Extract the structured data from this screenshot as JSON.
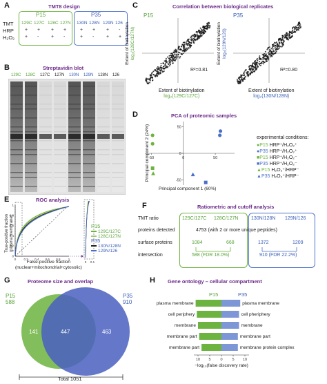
{
  "colors": {
    "green": "#6db33f",
    "blue": "#4a6fc9",
    "purple": "#6b2a8a",
    "gray": "#888888"
  },
  "panelA": {
    "label": "A",
    "title": "TMT8 design",
    "group_p15": "P15",
    "group_p35": "P35",
    "row_labels": [
      "TMT",
      "HRP",
      "H₂O₂"
    ],
    "channels": [
      "129C",
      "127C",
      "128C",
      "127N",
      "130N",
      "128N",
      "129N",
      "126"
    ],
    "hrp": [
      "+",
      "+",
      "+",
      "+",
      "+",
      "+",
      "+",
      "-"
    ],
    "h2o2": [
      "+",
      "-",
      "+",
      "-",
      "+",
      "-",
      "+",
      "+"
    ]
  },
  "panelB": {
    "label": "B",
    "title": "Streptavidin blot",
    "lanes": [
      "129C",
      "128C",
      "127C",
      "127N",
      "130N",
      "129N",
      "128N",
      "126"
    ]
  },
  "panelC": {
    "label": "C",
    "title": "Correlation between biological replicates",
    "left": {
      "group": "P15",
      "r2": "R²=0.81",
      "ylabel1": "Extent of biotinylation",
      "ylabel2": "log₂(128C/127N)",
      "xlabel1": "Extent of biotinylation",
      "xlabel2": "log₂(129C/127C)"
    },
    "right": {
      "group": "P35",
      "r2": "R²=0.80",
      "ylabel1": "Extent of biotinylation",
      "ylabel2": "log₂(129N/126)",
      "xlabel1": "Extent of biotinylation",
      "xlabel2": "log₂(130N/128N)"
    }
  },
  "panelD": {
    "label": "D",
    "title": "PCA of proteomic samples",
    "ylabel": "Principal component 2 (24%)",
    "xlabel": "Principal component 1 (60%)",
    "xticks": [
      "-50",
      "0",
      "50"
    ],
    "yticks": [
      "50",
      "0",
      "-50"
    ],
    "legend_title": "experimental conditions:",
    "legend": [
      {
        "group": "P15",
        "text": "HRP⁺/H₂O₂⁺",
        "color": "#6db33f",
        "shape": "circle"
      },
      {
        "group": "P35",
        "text": "HRP⁺/H₂O₂⁺",
        "color": "#4a6fc9",
        "shape": "circle"
      },
      {
        "group": "P15",
        "text": "HRP⁺/H₂O₂⁻",
        "color": "#6db33f",
        "shape": "square"
      },
      {
        "group": "P35",
        "text": "HRP⁺/H₂O₂⁻",
        "color": "#4a6fc9",
        "shape": "square"
      },
      {
        "group": "P15",
        "text": "H₂O₂⁺/HRP⁻",
        "color": "#6db33f",
        "shape": "triangle"
      },
      {
        "group": "P35",
        "text": "H₂O₂⁺/HRP⁻",
        "color": "#4a6fc9",
        "shape": "triangle"
      }
    ]
  },
  "chart_data": [
    {
      "type": "scatter",
      "title": "PCA of proteomic samples",
      "xlabel": "Principal component 1 (60%)",
      "ylabel": "Principal component 2 (24%)",
      "xlim": [
        -60,
        80
      ],
      "ylim": [
        -60,
        60
      ],
      "series": [
        {
          "name": "P15 HRP⁺/H₂O₂⁺",
          "color": "#6db33f",
          "shape": "circle",
          "points": [
            [
              -48,
              18
            ],
            [
              -48,
              34
            ]
          ]
        },
        {
          "name": "P35 HRP⁺/H₂O₂⁺",
          "color": "#4a6fc9",
          "shape": "circle",
          "points": [
            [
              58,
              42
            ],
            [
              57,
              34
            ]
          ]
        },
        {
          "name": "P15 HRP⁺/H₂O₂⁻",
          "color": "#6db33f",
          "shape": "square",
          "points": [
            [
              -48,
              -28
            ]
          ]
        },
        {
          "name": "P35 HRP⁺/H₂O₂⁻",
          "color": "#4a6fc9",
          "shape": "square",
          "points": [
            [
              35,
              -55
            ]
          ]
        },
        {
          "name": "P15 H₂O₂⁺/HRP⁻",
          "color": "#6db33f",
          "shape": "triangle",
          "points": [
            [
              -47,
              -38
            ]
          ]
        },
        {
          "name": "P35 H₂O₂⁺/HRP⁻",
          "color": "#4a6fc9",
          "shape": "triangle",
          "points": [
            [
              15,
              -40
            ]
          ]
        }
      ]
    },
    {
      "type": "bar",
      "title": "Gene ontology – cellular compartment",
      "xlabel": "−log₁₀(false discovery rate)",
      "xticks": [
        "10",
        "5",
        "0",
        "5",
        "10"
      ],
      "categories_left": [
        "plasma membrane",
        "cell periphery",
        "membrane",
        "membrane part",
        "membrane part"
      ],
      "categories_right": [
        "plasma membrane",
        "cell pheriphery",
        "membrane",
        "membrane part",
        "membrane protein complex"
      ],
      "series": [
        {
          "name": "P15",
          "values": [
            11,
            10.5,
            10,
            9.5,
            8.5
          ]
        },
        {
          "name": "P35",
          "values": [
            8,
            7.5,
            7.5,
            7,
            7
          ]
        }
      ],
      "xlim": [
        -12,
        12
      ]
    }
  ],
  "panelE": {
    "label": "E",
    "title": "ROC analysis",
    "ylabel1": "True-positive fraction",
    "ylabel2": "(plasma membrane)",
    "xlabel1": "False-positive fraction",
    "xlabel2": "(nuclear+mitochondrial+cytosolic)",
    "ticks": [
      "0",
      "0.2",
      "0.4",
      "0.6",
      "0.8",
      "1"
    ],
    "inset_ticks": [
      "0",
      "0.1"
    ],
    "group_p15": "P15",
    "group_p35": "P35",
    "legend": [
      {
        "text": "129C/127C",
        "color": "#6db33f"
      },
      {
        "text": "128C/127N",
        "color": "#a8c96a"
      },
      {
        "text": "130N/128N",
        "color": "#222222"
      },
      {
        "text": "129N/126",
        "color": "#4a6fc9"
      }
    ]
  },
  "panelF": {
    "label": "F",
    "title": "Ratiometric and cutoff analysis",
    "rows": [
      "TMT ratio",
      "proteins detected",
      "surface proteins",
      "intersection"
    ],
    "ratios": [
      "129C/127C",
      "128C/127N",
      "130N/128N",
      "129N/126"
    ],
    "detected": "4753 (with 2 or more unique peptides)",
    "surface": [
      "1084",
      "668",
      "1372",
      "1209"
    ],
    "intersection": [
      "588 (FDR 18.0%)",
      "910 (FDR 22.2%)"
    ]
  },
  "panelG": {
    "label": "G",
    "title": "Proteome size and overlap",
    "p15_name": "P15",
    "p15_count": "588",
    "p35_name": "P35",
    "p35_count": "910",
    "only_p15": "141",
    "both": "447",
    "only_p35": "463",
    "total": "Total 1051"
  },
  "panelH": {
    "label": "H",
    "title": "Gene ontology – cellular compartment",
    "group_p15": "P15",
    "group_p35": "P35"
  }
}
